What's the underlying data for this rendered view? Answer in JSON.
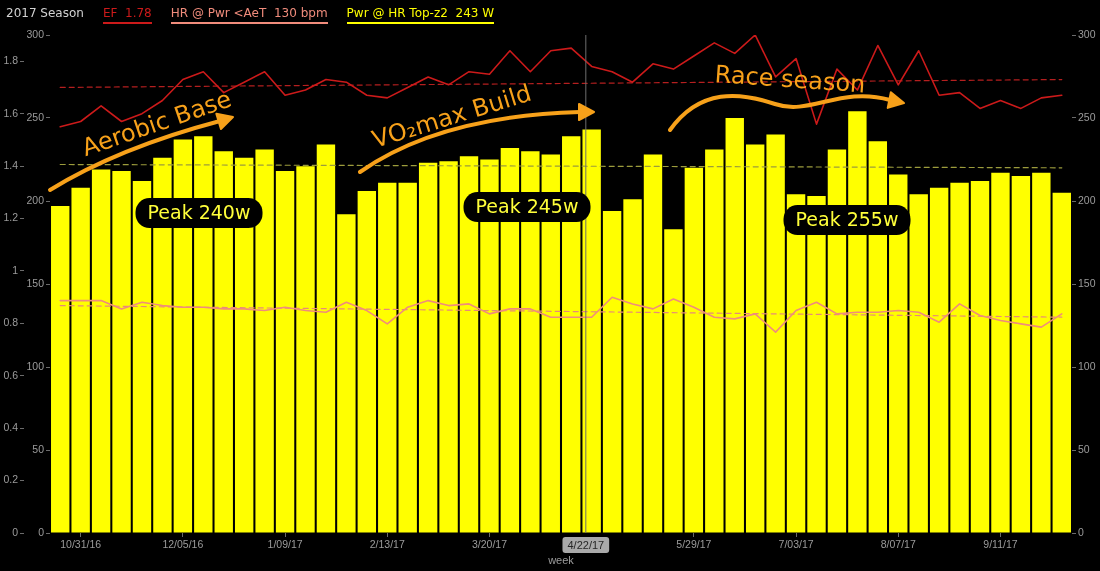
{
  "chart_data": {
    "type": "bar",
    "title": "2017 Season",
    "xlabel": "week",
    "x": [
      "2016-10-24",
      "2016-10-31",
      "2016-11-07",
      "2016-11-14",
      "2016-11-21",
      "2016-11-28",
      "2016-12-05",
      "2016-12-12",
      "2016-12-19",
      "2016-12-26",
      "2017-01-02",
      "2017-01-09",
      "2017-01-16",
      "2017-01-23",
      "2017-01-30",
      "2017-02-06",
      "2017-02-13",
      "2017-02-20",
      "2017-02-27",
      "2017-03-06",
      "2017-03-13",
      "2017-03-20",
      "2017-03-27",
      "2017-04-03",
      "2017-04-10",
      "2017-04-17",
      "2017-04-24",
      "2017-05-01",
      "2017-05-08",
      "2017-05-15",
      "2017-05-22",
      "2017-05-29",
      "2017-06-05",
      "2017-06-12",
      "2017-06-19",
      "2017-06-26",
      "2017-07-03",
      "2017-07-10",
      "2017-07-17",
      "2017-07-24",
      "2017-07-31",
      "2017-08-07",
      "2017-08-14",
      "2017-08-21",
      "2017-08-28",
      "2017-09-04",
      "2017-09-11",
      "2017-09-18",
      "2017-09-25",
      "2017-10-02"
    ],
    "xlim": [
      "2016-10-20T12:00",
      "2017-10-05T12:00"
    ],
    "xticks": [
      {
        "value": "2016-10-31",
        "label": "10/31/16"
      },
      {
        "value": "2016-12-05",
        "label": "12/05/16"
      },
      {
        "value": "2017-01-09",
        "label": "1/09/17"
      },
      {
        "value": "2017-02-13",
        "label": "2/13/17"
      },
      {
        "value": "2017-03-20",
        "label": "3/20/17"
      },
      {
        "value": "2017-05-29",
        "label": "5/29/17"
      },
      {
        "value": "2017-07-03",
        "label": "7/03/17"
      },
      {
        "value": "2017-08-07",
        "label": "8/07/17"
      },
      {
        "value": "2017-09-11",
        "label": "9/11/17"
      }
    ],
    "ylim": [
      0,
      1.9
    ],
    "yticks": [
      0,
      0.2,
      0.4,
      0.6,
      0.8,
      1,
      1.2,
      1.4,
      1.6,
      1.8
    ],
    "y3lim": [
      0,
      300
    ],
    "y3ticks": [
      0,
      50,
      100,
      150,
      200,
      250,
      300
    ],
    "y2lim": [
      0,
      300
    ],
    "y2ticks": [
      0,
      50,
      100,
      150,
      200,
      250,
      300
    ],
    "series": [
      {
        "name": "EF  1.78",
        "type": "line",
        "axis": "y",
        "color": "#cc1a1a",
        "values": [
          1.55,
          1.57,
          1.63,
          1.57,
          1.6,
          1.65,
          1.73,
          1.76,
          1.68,
          1.72,
          1.76,
          1.67,
          1.69,
          1.73,
          1.72,
          1.67,
          1.66,
          1.7,
          1.74,
          1.71,
          1.76,
          1.75,
          1.84,
          1.76,
          1.84,
          1.85,
          1.78,
          1.76,
          1.72,
          1.79,
          1.77,
          1.82,
          1.87,
          1.83,
          1.9,
          1.74,
          1.81,
          1.56,
          1.77,
          1.69,
          1.86,
          1.71,
          1.84,
          1.67,
          1.68,
          1.62,
          1.65,
          1.62,
          1.66,
          1.67
        ]
      },
      {
        "name": "HR @ Pwr <AeT  130 bpm",
        "type": "line",
        "axis": "y3",
        "color": "#f08c7c",
        "values": [
          140,
          140,
          140,
          135,
          139,
          137,
          136,
          136,
          135,
          135,
          134,
          136,
          134,
          133,
          139,
          134,
          126,
          136,
          140,
          137,
          138,
          132,
          135,
          135,
          130,
          130,
          130,
          142,
          138,
          135,
          141,
          136,
          130,
          129,
          132,
          121,
          134,
          139,
          132,
          133,
          133,
          134,
          133,
          127,
          138,
          131,
          128,
          126,
          124,
          132
        ]
      },
      {
        "name": "Pwr @ HR Top-z2  243 W",
        "axis": "y2",
        "color": "#ffff00",
        "values": [
          197,
          208,
          219,
          218,
          212,
          226,
          237,
          239,
          230,
          226,
          231,
          218,
          221,
          234,
          192,
          206,
          211,
          211,
          223,
          224,
          227,
          225,
          232,
          230,
          228,
          239,
          243,
          194,
          201,
          228,
          183,
          220,
          231,
          250,
          234,
          240,
          204,
          203,
          231,
          254,
          236,
          216,
          204,
          208,
          211,
          212,
          217,
          215,
          217,
          205
        ]
      },
      {
        "type": "line",
        "axis": "y",
        "color": "#b51f1f",
        "line_style": "dashed",
        "x": [
          "2016-10-24",
          "2017-10-02"
        ],
        "values": [
          1.7,
          1.73
        ]
      },
      {
        "type": "line",
        "axis": "y2",
        "color": "#9c9c3c",
        "line_style": "dashed",
        "x": [
          "2016-10-24",
          "2017-10-02"
        ],
        "values": [
          222,
          220
        ]
      },
      {
        "type": "line",
        "axis": "y3",
        "color": "#e88a78",
        "line_style": "dashed",
        "x": [
          "2016-10-24",
          "2017-10-02"
        ],
        "values": [
          137,
          130
        ]
      }
    ],
    "ref_lines": [
      {
        "axis": "x",
        "value": "2017-04-22",
        "label": "4/22/17",
        "color": "#6e6e6e"
      }
    ],
    "legend": "top left",
    "marker": "none",
    "annotations": [
      "Aerobic Base",
      "VO₂max Build",
      "Race season",
      "Peak 240w",
      "Peak 245w",
      "Peak 255w"
    ]
  }
}
